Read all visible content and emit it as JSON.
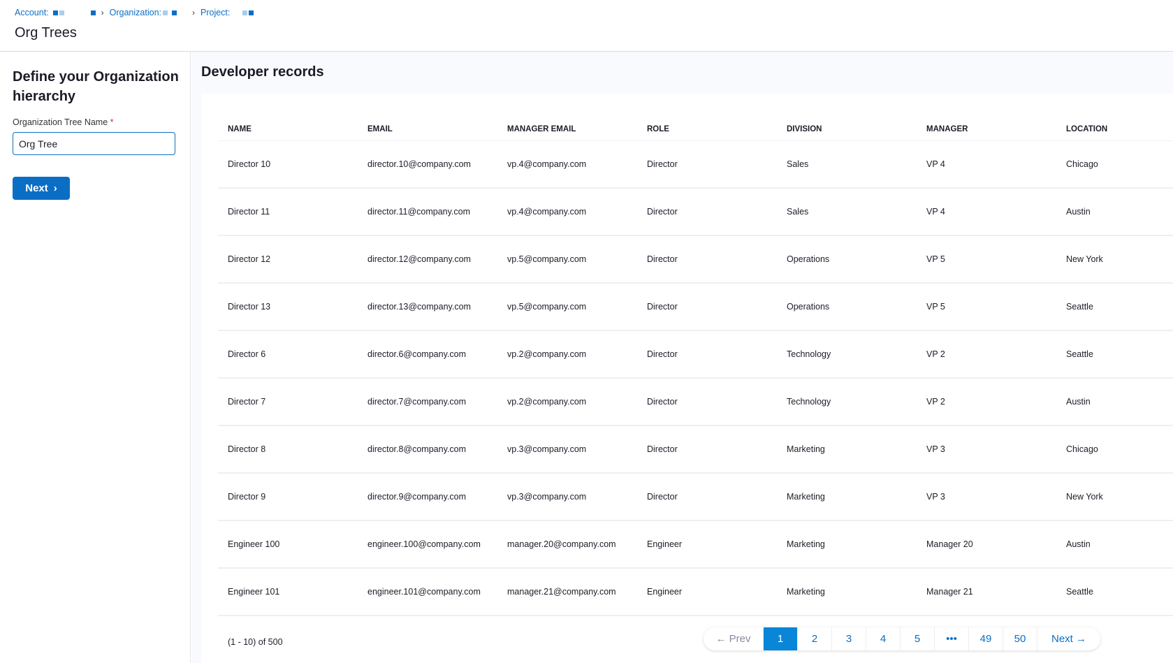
{
  "breadcrumb": {
    "account": "Account:",
    "organization": "Organization:",
    "project": "Project:"
  },
  "header": {
    "title": "Org Trees"
  },
  "sidebar": {
    "heading": "Define your Organization hierarchy",
    "field_label": "Organization Tree Name",
    "required_mark": "*",
    "field_value": "Org Tree",
    "next_label": "Next"
  },
  "main": {
    "title": "Developer records"
  },
  "table": {
    "columns": [
      "NAME",
      "EMAIL",
      "MANAGER EMAIL",
      "ROLE",
      "DIVISION",
      "MANAGER",
      "LOCATION"
    ],
    "rows": [
      [
        "Director 10",
        "director.10@company.com",
        "vp.4@company.com",
        "Director",
        "Sales",
        "VP 4",
        "Chicago"
      ],
      [
        "Director 11",
        "director.11@company.com",
        "vp.4@company.com",
        "Director",
        "Sales",
        "VP 4",
        "Austin"
      ],
      [
        "Director 12",
        "director.12@company.com",
        "vp.5@company.com",
        "Director",
        "Operations",
        "VP 5",
        "New York"
      ],
      [
        "Director 13",
        "director.13@company.com",
        "vp.5@company.com",
        "Director",
        "Operations",
        "VP 5",
        "Seattle"
      ],
      [
        "Director 6",
        "director.6@company.com",
        "vp.2@company.com",
        "Director",
        "Technology",
        "VP 2",
        "Seattle"
      ],
      [
        "Director 7",
        "director.7@company.com",
        "vp.2@company.com",
        "Director",
        "Technology",
        "VP 2",
        "Austin"
      ],
      [
        "Director 8",
        "director.8@company.com",
        "vp.3@company.com",
        "Director",
        "Marketing",
        "VP 3",
        "Chicago"
      ],
      [
        "Director 9",
        "director.9@company.com",
        "vp.3@company.com",
        "Director",
        "Marketing",
        "VP 3",
        "New York"
      ],
      [
        "Engineer 100",
        "engineer.100@company.com",
        "manager.20@company.com",
        "Engineer",
        "Marketing",
        "Manager 20",
        "Austin"
      ],
      [
        "Engineer 101",
        "engineer.101@company.com",
        "manager.21@company.com",
        "Engineer",
        "Marketing",
        "Manager 21",
        "Seattle"
      ]
    ]
  },
  "pagination": {
    "summary": "(1 - 10) of 500",
    "prev": "← Prev",
    "pages": [
      "1",
      "2",
      "3",
      "4",
      "5",
      "•••",
      "49",
      "50"
    ],
    "current": "1",
    "next": "Next →"
  },
  "colors": {
    "accent": "#0b6ec5",
    "active_page": "#0a86d8"
  }
}
